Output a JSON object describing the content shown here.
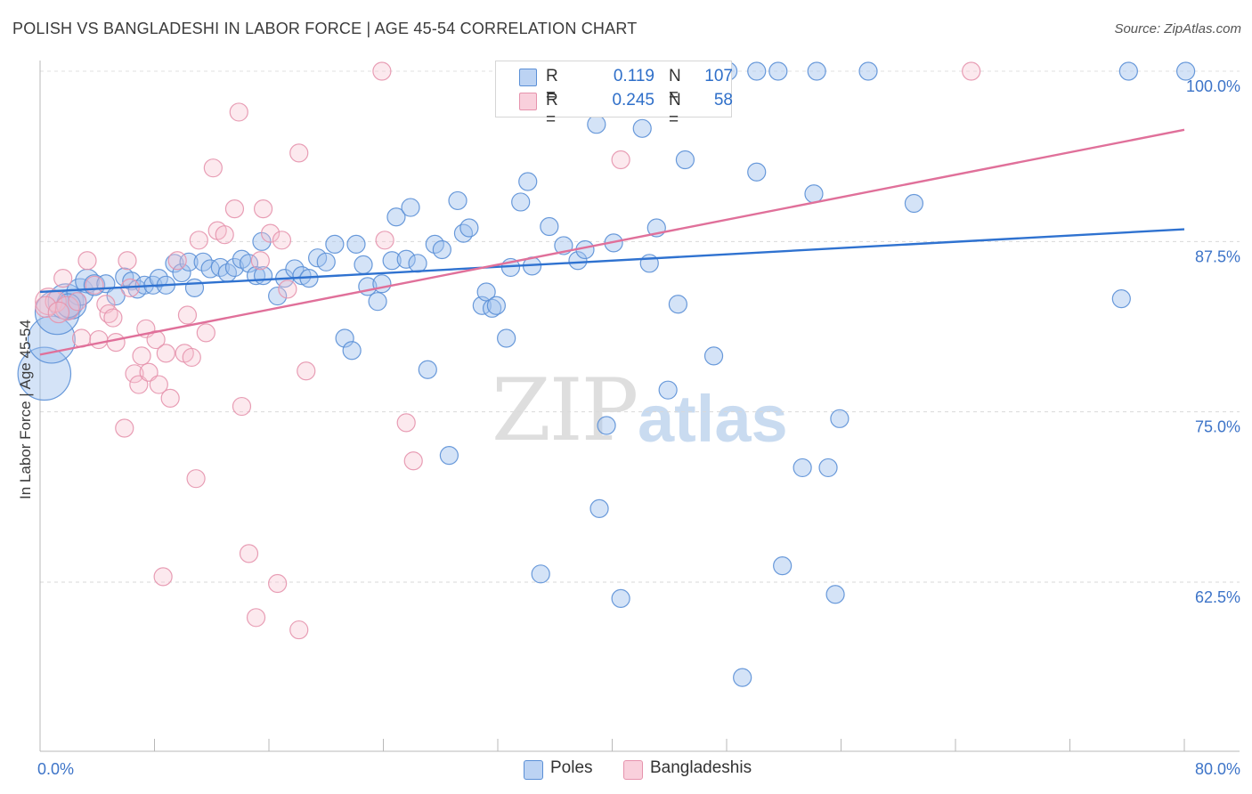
{
  "title": "POLISH VS BANGLADESHI IN LABOR FORCE | AGE 45-54 CORRELATION CHART",
  "source": "Source: ZipAtlas.com",
  "watermark": {
    "zip": "ZIP",
    "atlas": "atlas"
  },
  "legend": {
    "r_label": "R =",
    "n_label": "N =",
    "rows": [
      {
        "name": "Poles",
        "r": "0.119",
        "n": "107",
        "color": "#9fc1ee",
        "stroke": "#5a8fd6"
      },
      {
        "name": "Bangladeshis",
        "r": "0.245",
        "n": "58",
        "color": "#f7bfcf",
        "stroke": "#e693ad"
      }
    ]
  },
  "chart_data": {
    "type": "scatter",
    "title": "POLISH VS BANGLADESHI IN LABOR FORCE | AGE 45-54 CORRELATION CHART",
    "xlabel": "",
    "ylabel": "In Labor Force | Age 45-54",
    "xlim": [
      0,
      80
    ],
    "ylim": [
      50.5,
      101
    ],
    "x_tick_labels": [
      {
        "value": 0,
        "label": "0.0%"
      },
      {
        "value": 80,
        "label": "80.0%"
      }
    ],
    "y_tick_labels": [
      {
        "value": 100,
        "label": "100.0%"
      },
      {
        "value": 87.5,
        "label": "87.5%"
      },
      {
        "value": 75,
        "label": "75.0%"
      },
      {
        "value": 62.5,
        "label": "62.5%"
      }
    ],
    "x_minor_ticks": [
      0,
      8,
      16,
      24,
      32,
      40,
      48,
      56,
      64,
      72,
      80
    ],
    "grid": "horizontal dashed",
    "legend_position": "top-center",
    "series": [
      {
        "name": "Poles",
        "color": "#9fc1ee",
        "stroke": "#5a8fd6",
        "trend": {
          "x": [
            0,
            80
          ],
          "y": [
            83.8,
            88.4
          ],
          "color": "#2f72d0"
        },
        "points": [
          [
            0.3,
            77.8,
            34
          ],
          [
            0.8,
            80.3,
            30
          ],
          [
            1.2,
            82.3,
            28
          ],
          [
            1.8,
            83.1,
            22
          ],
          [
            2.2,
            82.9,
            18
          ],
          [
            2.8,
            83.8,
            16
          ],
          [
            3.3,
            84.6,
            14
          ],
          [
            3.8,
            84.3,
            12
          ],
          [
            4.6,
            84.4,
            10
          ],
          [
            5.3,
            83.5,
            10
          ],
          [
            5.9,
            84.9,
            10
          ],
          [
            6.4,
            84.6,
            10
          ],
          [
            6.8,
            84.0,
            10
          ],
          [
            7.3,
            84.3,
            10
          ],
          [
            7.9,
            84.3,
            10
          ],
          [
            8.3,
            84.8,
            10
          ],
          [
            8.8,
            84.3,
            10
          ],
          [
            9.4,
            85.9,
            10
          ],
          [
            9.9,
            85.2,
            10
          ],
          [
            10.4,
            86.0,
            10
          ],
          [
            10.8,
            84.1,
            10
          ],
          [
            11.4,
            86.0,
            10
          ],
          [
            11.9,
            85.5,
            10
          ],
          [
            12.6,
            85.6,
            10
          ],
          [
            13.1,
            85.2,
            10
          ],
          [
            13.6,
            85.6,
            10
          ],
          [
            14.1,
            86.2,
            10
          ],
          [
            14.6,
            85.9,
            10
          ],
          [
            15.1,
            85.0,
            10
          ],
          [
            15.6,
            85.0,
            10
          ],
          [
            15.5,
            87.5,
            10
          ],
          [
            16.6,
            83.5,
            10
          ],
          [
            17.1,
            84.8,
            10
          ],
          [
            17.8,
            85.5,
            10
          ],
          [
            18.3,
            85.0,
            10
          ],
          [
            18.8,
            84.8,
            10
          ],
          [
            19.4,
            86.3,
            10
          ],
          [
            20.0,
            86.0,
            10
          ],
          [
            20.6,
            87.3,
            10
          ],
          [
            21.3,
            80.4,
            10
          ],
          [
            21.8,
            79.5,
            10
          ],
          [
            22.1,
            87.3,
            10
          ],
          [
            22.6,
            85.8,
            10
          ],
          [
            22.9,
            84.2,
            10
          ],
          [
            23.6,
            83.1,
            10
          ],
          [
            23.9,
            84.4,
            10
          ],
          [
            24.6,
            86.1,
            10
          ],
          [
            24.9,
            89.3,
            10
          ],
          [
            25.6,
            86.2,
            10
          ],
          [
            25.9,
            90.0,
            10
          ],
          [
            26.4,
            85.9,
            10
          ],
          [
            27.1,
            78.1,
            10
          ],
          [
            27.6,
            87.3,
            10
          ],
          [
            28.1,
            86.9,
            10
          ],
          [
            28.6,
            71.8,
            10
          ],
          [
            29.2,
            90.5,
            10
          ],
          [
            29.6,
            88.1,
            10
          ],
          [
            30.0,
            88.5,
            10
          ],
          [
            30.9,
            82.8,
            10
          ],
          [
            31.2,
            83.8,
            10
          ],
          [
            31.6,
            82.6,
            10
          ],
          [
            31.9,
            82.8,
            10
          ],
          [
            32.6,
            80.4,
            10
          ],
          [
            32.9,
            85.6,
            10
          ],
          [
            33.6,
            90.4,
            10
          ],
          [
            34.1,
            91.9,
            10
          ],
          [
            34.4,
            85.7,
            10
          ],
          [
            35.0,
            63.1,
            10
          ],
          [
            35.6,
            88.6,
            10
          ],
          [
            36.1,
            97.5,
            10
          ],
          [
            36.6,
            87.2,
            10
          ],
          [
            37.1,
            98.3,
            10
          ],
          [
            37.6,
            86.1,
            10
          ],
          [
            38.1,
            86.9,
            10
          ],
          [
            38.9,
            96.1,
            10
          ],
          [
            39.1,
            67.9,
            10
          ],
          [
            39.6,
            74.0,
            10
          ],
          [
            40.1,
            87.4,
            10
          ],
          [
            40.6,
            61.3,
            10
          ],
          [
            41.5,
            98.5,
            10
          ],
          [
            42.1,
            95.8,
            10
          ],
          [
            42.6,
            85.9,
            10
          ],
          [
            43.1,
            88.5,
            10
          ],
          [
            43.9,
            76.6,
            10
          ],
          [
            44.6,
            82.9,
            10
          ],
          [
            45.1,
            93.5,
            10
          ],
          [
            47.1,
            79.1,
            10
          ],
          [
            48.1,
            100.0,
            10
          ],
          [
            49.1,
            55.5,
            10
          ],
          [
            50.1,
            100.0,
            10
          ],
          [
            50.1,
            92.6,
            10
          ],
          [
            51.6,
            100.0,
            10
          ],
          [
            51.9,
            63.7,
            10
          ],
          [
            53.3,
            70.9,
            10
          ],
          [
            54.3,
            100.0,
            10
          ],
          [
            54.1,
            91.0,
            10
          ],
          [
            55.1,
            70.9,
            10
          ],
          [
            55.6,
            61.6,
            10
          ],
          [
            55.9,
            74.5,
            10
          ],
          [
            57.9,
            100.0,
            10
          ],
          [
            61.1,
            90.3,
            10
          ],
          [
            75.6,
            83.3,
            10
          ],
          [
            76.1,
            100.0,
            10
          ],
          [
            80.1,
            100.0,
            10
          ],
          [
            36.1,
            100.0,
            10
          ],
          [
            47.0,
            100.0,
            10
          ],
          [
            2.0,
            82.8,
            14
          ]
        ]
      },
      {
        "name": "Bangladeshis",
        "color": "#f7bfcf",
        "stroke": "#e693ad",
        "trend": {
          "x": [
            0,
            80
          ],
          "y": [
            79.2,
            95.7
          ],
          "color": "#e0709a"
        },
        "points": [
          [
            0.6,
            83.1,
            16
          ],
          [
            1.1,
            83.1,
            12
          ],
          [
            1.6,
            84.8,
            10
          ],
          [
            1.9,
            82.6,
            14
          ],
          [
            2.6,
            83.1,
            10
          ],
          [
            2.9,
            80.4,
            10
          ],
          [
            3.3,
            86.1,
            10
          ],
          [
            3.8,
            84.3,
            10
          ],
          [
            4.1,
            80.3,
            10
          ],
          [
            4.6,
            82.9,
            10
          ],
          [
            4.8,
            82.2,
            10
          ],
          [
            5.1,
            81.9,
            10
          ],
          [
            5.3,
            80.1,
            10
          ],
          [
            5.9,
            73.8,
            10
          ],
          [
            6.1,
            86.1,
            10
          ],
          [
            6.3,
            84.1,
            10
          ],
          [
            6.6,
            77.8,
            10
          ],
          [
            6.9,
            77.0,
            10
          ],
          [
            7.1,
            79.1,
            10
          ],
          [
            7.6,
            77.9,
            10
          ],
          [
            7.4,
            81.1,
            10
          ],
          [
            8.1,
            80.3,
            10
          ],
          [
            8.3,
            77.0,
            10
          ],
          [
            8.6,
            62.9,
            10
          ],
          [
            8.8,
            79.3,
            10
          ],
          [
            9.1,
            76.0,
            10
          ],
          [
            9.6,
            86.1,
            10
          ],
          [
            10.1,
            79.3,
            10
          ],
          [
            10.3,
            82.1,
            10
          ],
          [
            10.6,
            79.0,
            10
          ],
          [
            10.9,
            70.1,
            10
          ],
          [
            11.1,
            87.6,
            10
          ],
          [
            11.6,
            80.8,
            10
          ],
          [
            12.1,
            92.9,
            10
          ],
          [
            12.4,
            88.3,
            10
          ],
          [
            12.9,
            88.0,
            10
          ],
          [
            13.6,
            89.9,
            10
          ],
          [
            13.9,
            97.0,
            10
          ],
          [
            14.1,
            75.4,
            10
          ],
          [
            14.6,
            64.6,
            10
          ],
          [
            15.1,
            59.9,
            10
          ],
          [
            15.4,
            86.1,
            10
          ],
          [
            15.6,
            89.9,
            10
          ],
          [
            16.1,
            88.1,
            10
          ],
          [
            16.6,
            62.4,
            10
          ],
          [
            16.9,
            87.6,
            10
          ],
          [
            17.3,
            84.0,
            10
          ],
          [
            18.1,
            94.0,
            10
          ],
          [
            18.6,
            78.0,
            10
          ],
          [
            18.1,
            59.0,
            10
          ],
          [
            23.9,
            100.0,
            10
          ],
          [
            24.1,
            87.6,
            10
          ],
          [
            25.6,
            74.2,
            10
          ],
          [
            26.1,
            71.4,
            10
          ],
          [
            40.6,
            93.5,
            10
          ],
          [
            65.1,
            100.0,
            10
          ],
          [
            0.4,
            82.7,
            12
          ],
          [
            1.3,
            82.3,
            12
          ]
        ]
      }
    ]
  }
}
